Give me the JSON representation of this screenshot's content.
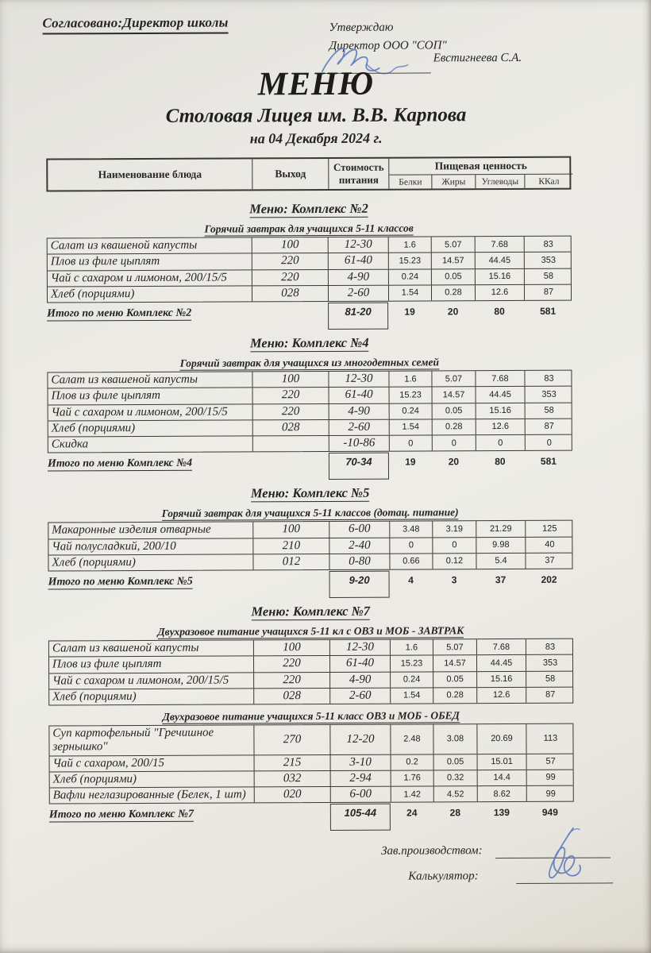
{
  "header": {
    "agreed_line": "Согласовано:Директор школы",
    "approve_line1": "Утверждаю",
    "approve_line2": "Директор ООО \"СОП\"",
    "approver_name": "Евстигнеева С.А.",
    "title": "МЕНЮ",
    "subtitle": "Столовая Лицея им. В.В. Карпова",
    "date_line": "на 04 Декабря 2024 г."
  },
  "table_header": {
    "name": "Наименование блюда",
    "output": "Выход",
    "cost_line1": "Стоимость",
    "cost_line2": "питания",
    "nutrition": "Пищевая ценность",
    "sub": [
      "Белки",
      "Жиры",
      "Углеводы",
      "ККал"
    ]
  },
  "sections": [
    {
      "title": "Меню: Комплекс №2",
      "groups": [
        {
          "subtitle": "Горячий завтрак для учащихся 5-11 классов",
          "rows": [
            {
              "name": "Салат из квашеной капусты",
              "output": "100",
              "cost": "12-30",
              "protein": "1.6",
              "fat": "5.07",
              "carbs": "7.68",
              "kcal": "83"
            },
            {
              "name": "Плов из филе цыплят",
              "output": "220",
              "cost": "61-40",
              "protein": "15.23",
              "fat": "14.57",
              "carbs": "44.45",
              "kcal": "353"
            },
            {
              "name": "Чай с сахаром и лимоном, 200/15/5",
              "output": "220",
              "cost": "4-90",
              "protein": "0.24",
              "fat": "0.05",
              "carbs": "15.16",
              "kcal": "58"
            },
            {
              "name": "Хлеб (порциями)",
              "output": "028",
              "cost": "2-60",
              "protein": "1.54",
              "fat": "0.28",
              "carbs": "12.6",
              "kcal": "87"
            }
          ]
        }
      ],
      "total": {
        "label": "Итого по меню Комплекс №2",
        "cost": "81-20",
        "protein": "19",
        "fat": "20",
        "carbs": "80",
        "kcal": "581"
      }
    },
    {
      "title": "Меню: Комплекс №4",
      "groups": [
        {
          "subtitle": "Горячий завтрак для учащихся из многодетных семей",
          "rows": [
            {
              "name": "Салат из квашеной капусты",
              "output": "100",
              "cost": "12-30",
              "protein": "1.6",
              "fat": "5.07",
              "carbs": "7.68",
              "kcal": "83"
            },
            {
              "name": "Плов из филе цыплят",
              "output": "220",
              "cost": "61-40",
              "protein": "15.23",
              "fat": "14.57",
              "carbs": "44.45",
              "kcal": "353"
            },
            {
              "name": "Чай с сахаром и лимоном, 200/15/5",
              "output": "220",
              "cost": "4-90",
              "protein": "0.24",
              "fat": "0.05",
              "carbs": "15.16",
              "kcal": "58"
            },
            {
              "name": "Хлеб (порциями)",
              "output": "028",
              "cost": "2-60",
              "protein": "1.54",
              "fat": "0.28",
              "carbs": "12.6",
              "kcal": "87"
            },
            {
              "name": "Скидка",
              "output": "",
              "cost": "-10-86",
              "protein": "0",
              "fat": "0",
              "carbs": "0",
              "kcal": "0"
            }
          ]
        }
      ],
      "total": {
        "label": "Итого по меню Комплекс №4",
        "cost": "70-34",
        "protein": "19",
        "fat": "20",
        "carbs": "80",
        "kcal": "581"
      }
    },
    {
      "title": "Меню: Комплекс №5",
      "groups": [
        {
          "subtitle": "Горячий завтрак для учащихся 5-11 классов (дотац. питание)",
          "rows": [
            {
              "name": "Макаронные изделия отварные",
              "output": "100",
              "cost": "6-00",
              "protein": "3.48",
              "fat": "3.19",
              "carbs": "21.29",
              "kcal": "125"
            },
            {
              "name": "Чай полусладкий, 200/10",
              "output": "210",
              "cost": "2-40",
              "protein": "0",
              "fat": "0",
              "carbs": "9.98",
              "kcal": "40"
            },
            {
              "name": "Хлеб (порциями)",
              "output": "012",
              "cost": "0-80",
              "protein": "0.66",
              "fat": "0.12",
              "carbs": "5.4",
              "kcal": "37"
            }
          ]
        }
      ],
      "total": {
        "label": "Итого по меню Комплекс №5",
        "cost": "9-20",
        "protein": "4",
        "fat": "3",
        "carbs": "37",
        "kcal": "202"
      }
    },
    {
      "title": "Меню: Комплекс №7",
      "groups": [
        {
          "subtitle": "Двухразовое питание учащихся 5-11 кл с  ОВЗ и МОБ - ЗАВТРАК",
          "rows": [
            {
              "name": "Салат из квашеной капусты",
              "output": "100",
              "cost": "12-30",
              "protein": "1.6",
              "fat": "5.07",
              "carbs": "7.68",
              "kcal": "83"
            },
            {
              "name": "Плов из филе цыплят",
              "output": "220",
              "cost": "61-40",
              "protein": "15.23",
              "fat": "14.57",
              "carbs": "44.45",
              "kcal": "353"
            },
            {
              "name": "Чай с сахаром и лимоном, 200/15/5",
              "output": "220",
              "cost": "4-90",
              "protein": "0.24",
              "fat": "0.05",
              "carbs": "15.16",
              "kcal": "58"
            },
            {
              "name": "Хлеб (порциями)",
              "output": "028",
              "cost": "2-60",
              "protein": "1.54",
              "fat": "0.28",
              "carbs": "12.6",
              "kcal": "87"
            }
          ]
        },
        {
          "subtitle": "Двухразовое питание учащихся 5-11 класс ОВЗ и МОБ - ОБЕД",
          "rows": [
            {
              "name": "Суп картофельный \"Гречишное зернышко\"",
              "output": "270",
              "cost": "12-20",
              "protein": "2.48",
              "fat": "3.08",
              "carbs": "20.69",
              "kcal": "113"
            },
            {
              "name": "Чай с сахаром, 200/15",
              "output": "215",
              "cost": "3-10",
              "protein": "0.2",
              "fat": "0.05",
              "carbs": "15.01",
              "kcal": "57"
            },
            {
              "name": "Хлеб (порциями)",
              "output": "032",
              "cost": "2-94",
              "protein": "1.76",
              "fat": "0.32",
              "carbs": "14.4",
              "kcal": "99"
            },
            {
              "name": "Вафли неглазированные (Белек, 1 шт)",
              "output": "020",
              "cost": "6-00",
              "protein": "1.42",
              "fat": "4.52",
              "carbs": "8.62",
              "kcal": "99"
            }
          ]
        }
      ],
      "total": {
        "label": "Итого по меню Комплекс №7",
        "cost": "105-44",
        "protein": "24",
        "fat": "28",
        "carbs": "139",
        "kcal": "949"
      }
    }
  ],
  "footer": {
    "production_manager_label": "Зав.производством:",
    "calculator_label": "Калькулятор:"
  },
  "colors": {
    "paper": "#ebeae5",
    "ink": "#262420",
    "signature_ink": "#5b79c0",
    "table_border": "#3a3832"
  }
}
